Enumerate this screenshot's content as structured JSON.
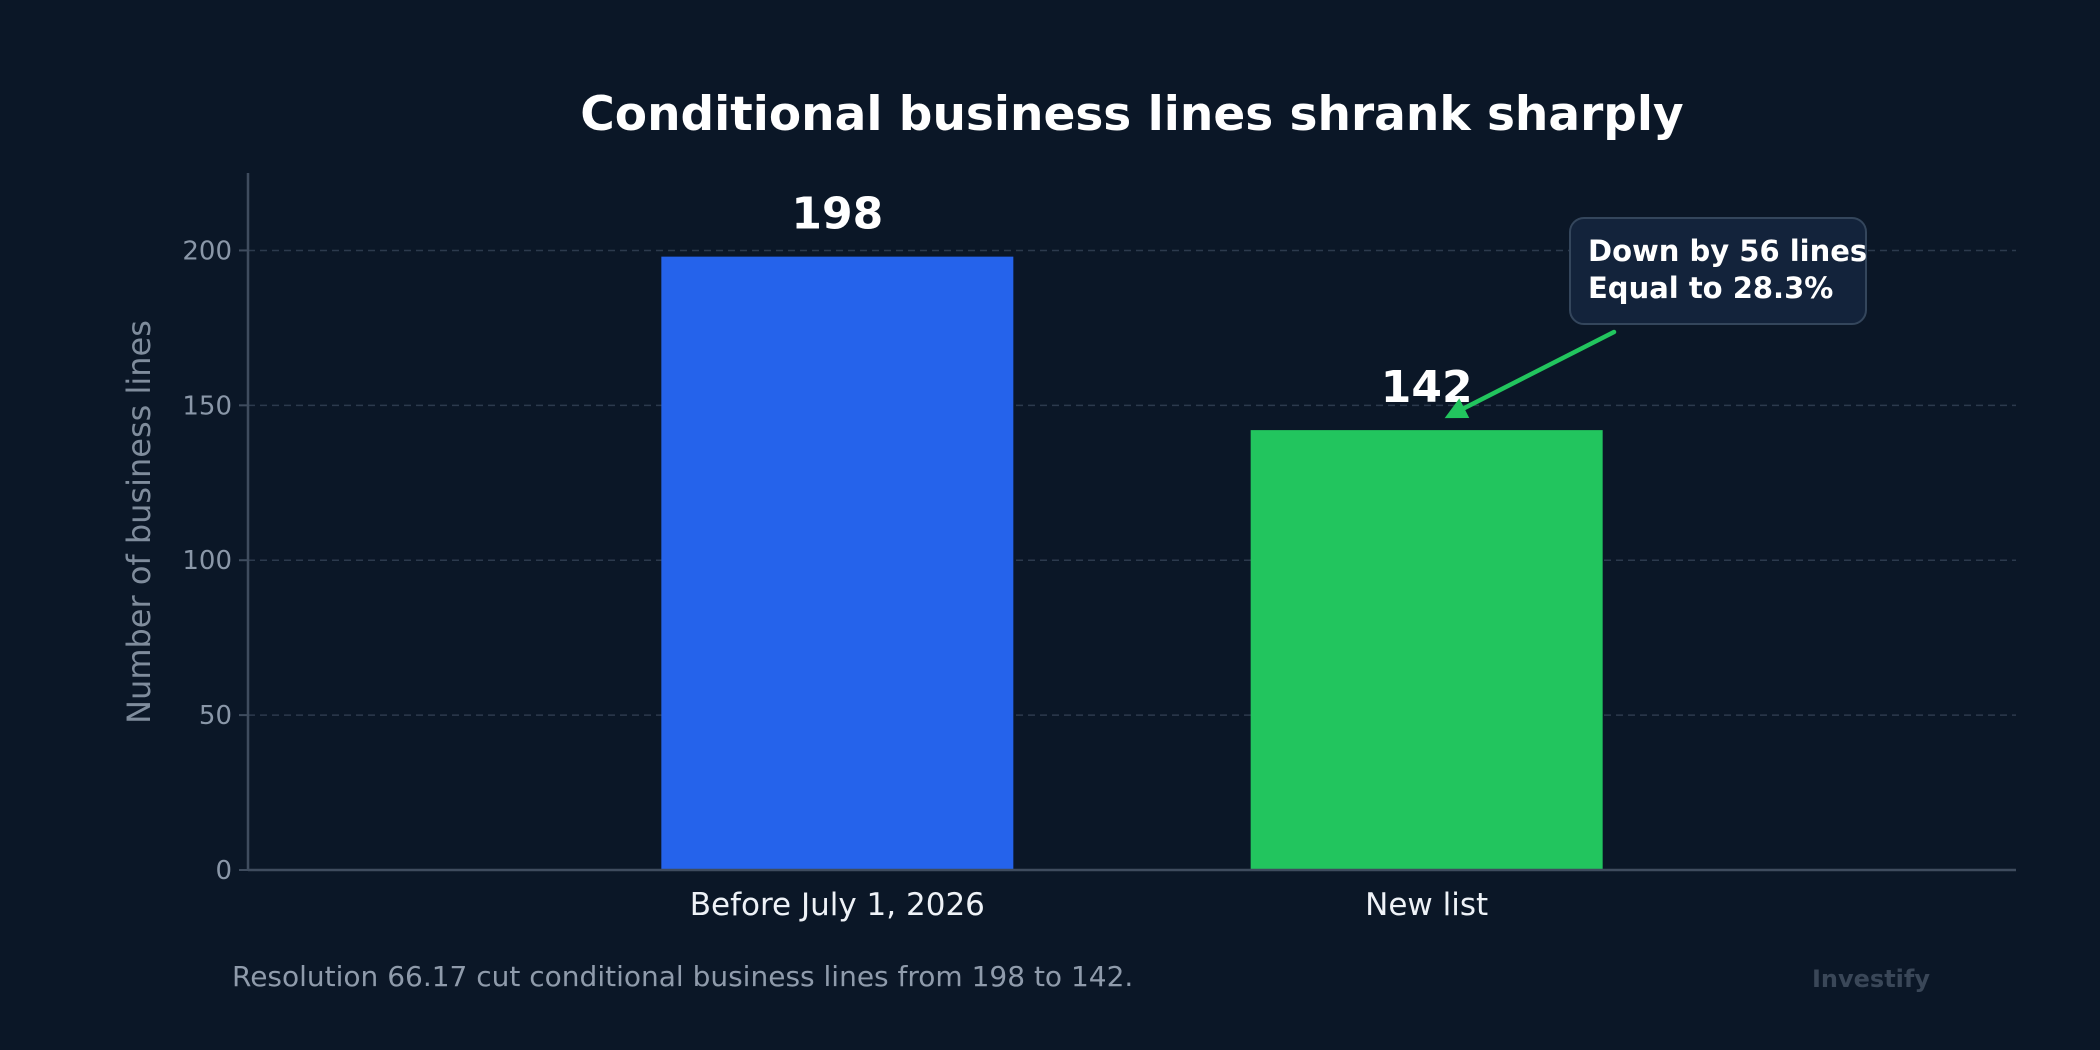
{
  "chart_data": {
    "type": "bar",
    "title": "Conditional business lines shrank sharply",
    "xlabel": "",
    "ylabel": "Number of business lines",
    "categories": [
      "Before July 1, 2026",
      "New list"
    ],
    "values": [
      198,
      142
    ],
    "data_labels": [
      "198",
      "142"
    ],
    "colors": [
      "#2563eb",
      "#22c55e"
    ],
    "ylim": [
      0,
      225
    ],
    "yticks": [
      0,
      50,
      100,
      150,
      200
    ],
    "grid": true,
    "legend": "none",
    "annotation": {
      "lines": [
        "Down by 56 lines",
        "Equal to 28.3%"
      ],
      "points_to": "New list",
      "arrow_color": "#22c55e"
    }
  },
  "footnote": "Resolution 66.17 cut conditional business lines from 198 to 142.",
  "brand": "Investify"
}
